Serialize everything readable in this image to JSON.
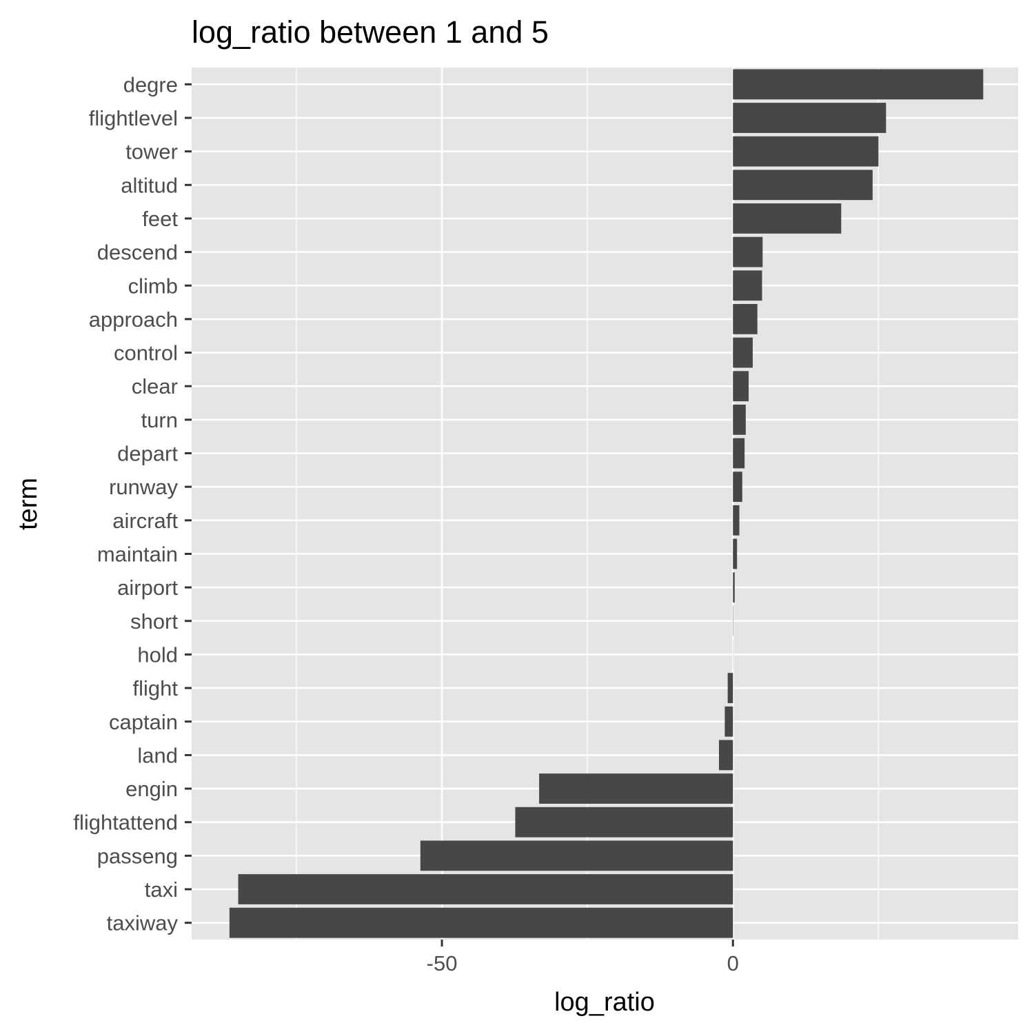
{
  "chart_data": {
    "type": "bar",
    "orientation": "horizontal",
    "title": "log_ratio between 1 and 5",
    "xlabel": "log_ratio",
    "ylabel": "term",
    "xlim": [
      -93,
      49
    ],
    "x_ticks": [
      -50,
      0
    ],
    "x_tick_labels": [
      "-50",
      "0"
    ],
    "x_minor_ticks": [
      -75,
      -25,
      25
    ],
    "grid": true,
    "bar_color": "#474747",
    "panel_color": "#e5e5e5",
    "categories": [
      "degre",
      "flightlevel",
      "tower",
      "altitud",
      "feet",
      "descend",
      "climb",
      "approach",
      "control",
      "clear",
      "turn",
      "depart",
      "runway",
      "aircraft",
      "maintain",
      "airport",
      "short",
      "hold",
      "flight",
      "captain",
      "land",
      "engin",
      "flightattend",
      "passeng",
      "taxi",
      "taxiway"
    ],
    "values": [
      43,
      26.3,
      25,
      24,
      18.6,
      5.1,
      5,
      4.2,
      3.4,
      2.7,
      2.2,
      2,
      1.6,
      1.1,
      0.7,
      0.3,
      0.05,
      0.02,
      -0.9,
      -1.4,
      -2.4,
      -33.3,
      -37.4,
      -53.7,
      -85,
      -86.5
    ]
  }
}
